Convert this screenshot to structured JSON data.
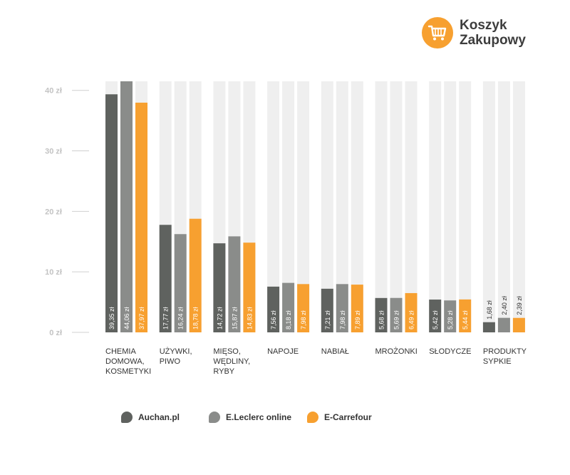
{
  "brand": {
    "line1": "Koszyk",
    "line2": "Zakupowy",
    "icon": "shopping-cart-icon",
    "color": "#f7a030"
  },
  "chart_data": {
    "type": "bar",
    "title": "",
    "xlabel": "",
    "ylabel": "",
    "ylim": [
      0,
      40
    ],
    "yticks": [
      {
        "value": 0,
        "label": "0 zł"
      },
      {
        "value": 10,
        "label": "10 zł"
      },
      {
        "value": 20,
        "label": "20 zł"
      },
      {
        "value": 30,
        "label": "30 zł"
      },
      {
        "value": 40,
        "label": "40 zł"
      }
    ],
    "categories": [
      [
        "CHEMIA",
        "DOMOWA,",
        "KOSMETYKI"
      ],
      [
        "UŻYWKI,",
        "PIWO"
      ],
      [
        "MIĘSO,",
        "WĘDLINY,",
        "RYBY"
      ],
      [
        "NAPOJE"
      ],
      [
        "NABIAŁ"
      ],
      [
        "MROŻONKI"
      ],
      [
        "SŁODYCZE"
      ],
      [
        "PRODUKTY",
        "SYPKIE"
      ]
    ],
    "series": [
      {
        "name": "Auchan.pl",
        "color": "#5f625f",
        "values": [
          39.35,
          17.77,
          14.72,
          7.56,
          7.21,
          5.68,
          5.42,
          1.68
        ],
        "labels": [
          "39,35 zł",
          "17,77 zł",
          "14,72 zł",
          "7,56 zł",
          "7,21 zł",
          "5,68 zł",
          "5,42 zł",
          "1,68 zł"
        ]
      },
      {
        "name": "E.Leclerc online",
        "color": "#8a8c8a",
        "values": [
          44.06,
          16.24,
          15.87,
          8.18,
          7.98,
          5.69,
          5.28,
          2.4
        ],
        "labels": [
          "44,06 zł",
          "16,24 zł",
          "15,87 zł",
          "8,18 zł",
          "7,98 zł",
          "5,69 zł",
          "5,28 zł",
          "2,40 zł"
        ]
      },
      {
        "name": "E-Carrefour",
        "color": "#f7a030",
        "values": [
          37.97,
          18.78,
          14.83,
          7.98,
          7.89,
          6.49,
          5.44,
          2.39
        ],
        "labels": [
          "37,97 zł",
          "18,78 zł",
          "14,83 zł",
          "7,98 zł",
          "7,89 zł",
          "6,49 zł",
          "5,44 zł",
          "2,39 zł"
        ]
      }
    ],
    "background_bar_color": "#efefef",
    "grid": false,
    "legend_position": "bottom"
  }
}
